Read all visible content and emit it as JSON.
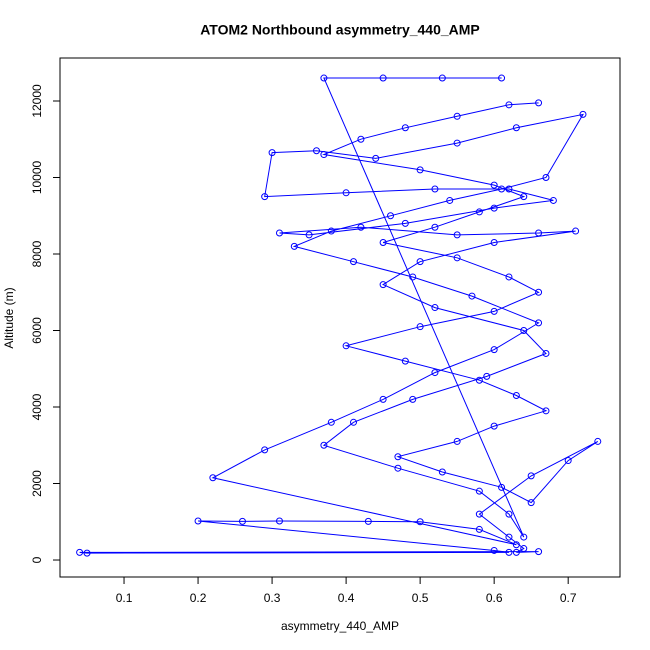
{
  "chart_data": {
    "type": "line",
    "title": "ATOM2 Northbound asymmetry_440_AMP",
    "x_label": "asymmetry_440_AMP",
    "y_label": "Altitude (m)",
    "color": "#0000ff",
    "markers": true,
    "x": [
      0.66,
      0.62,
      0.55,
      0.48,
      0.42,
      0.37,
      0.5,
      0.6,
      0.64,
      0.58,
      0.52,
      0.45,
      0.55,
      0.62,
      0.66,
      0.6,
      0.5,
      0.4,
      0.48,
      0.58,
      0.63,
      0.67,
      0.6,
      0.55,
      0.47,
      0.53,
      0.61,
      0.65,
      0.7,
      0.74,
      0.65,
      0.58,
      0.62,
      0.64,
      0.63,
      0.66,
      0.04,
      0.05,
      0.62,
      0.6,
      0.2,
      0.26,
      0.31,
      0.43,
      0.5,
      0.58,
      0.63,
      0.22,
      0.29,
      0.38,
      0.45,
      0.52,
      0.6,
      0.66,
      0.57,
      0.49,
      0.41,
      0.33,
      0.38,
      0.46,
      0.54,
      0.61,
      0.67,
      0.72,
      0.63,
      0.55,
      0.44,
      0.36,
      0.3,
      0.29,
      0.4,
      0.52,
      0.62,
      0.68,
      0.6,
      0.48,
      0.35,
      0.31,
      0.42,
      0.55,
      0.66,
      0.71,
      0.6,
      0.5,
      0.45,
      0.52,
      0.64,
      0.67,
      0.59,
      0.49,
      0.41,
      0.37,
      0.47,
      0.58,
      0.62,
      0.64,
      0.37,
      0.45,
      0.53,
      0.61
    ],
    "values": [
      11950,
      11900,
      11600,
      11300,
      11000,
      10600,
      10200,
      9800,
      9500,
      9100,
      8700,
      8300,
      7900,
      7400,
      7000,
      6500,
      6100,
      5600,
      5200,
      4700,
      4300,
      3900,
      3500,
      3100,
      2700,
      2300,
      1900,
      1500,
      2600,
      3100,
      2200,
      1200,
      600,
      300,
      200,
      220,
      200,
      180,
      200,
      250,
      1020,
      1010,
      1020,
      1010,
      1000,
      800,
      400,
      2150,
      2880,
      3600,
      4200,
      4900,
      5500,
      6200,
      6900,
      7400,
      7800,
      8200,
      8600,
      9000,
      9400,
      9700,
      10000,
      11650,
      11300,
      10900,
      10500,
      10700,
      10650,
      9500,
      9600,
      9700,
      9700,
      9400,
      9200,
      8800,
      8500,
      8550,
      8700,
      8500,
      8550,
      8600,
      8300,
      7800,
      7200,
      6600,
      6000,
      5400,
      4800,
      4200,
      3600,
      3000,
      2400,
      1800,
      1200,
      600,
      12600,
      12600,
      12600,
      12600
    ],
    "xlim": [
      0.0135,
      0.77
    ],
    "ylim": [
      -444,
      13124
    ],
    "xticks": [
      0.1,
      0.2,
      0.3,
      0.4,
      0.5,
      0.6,
      0.7
    ],
    "yticks": [
      0,
      2000,
      4000,
      6000,
      8000,
      10000,
      12000
    ]
  }
}
